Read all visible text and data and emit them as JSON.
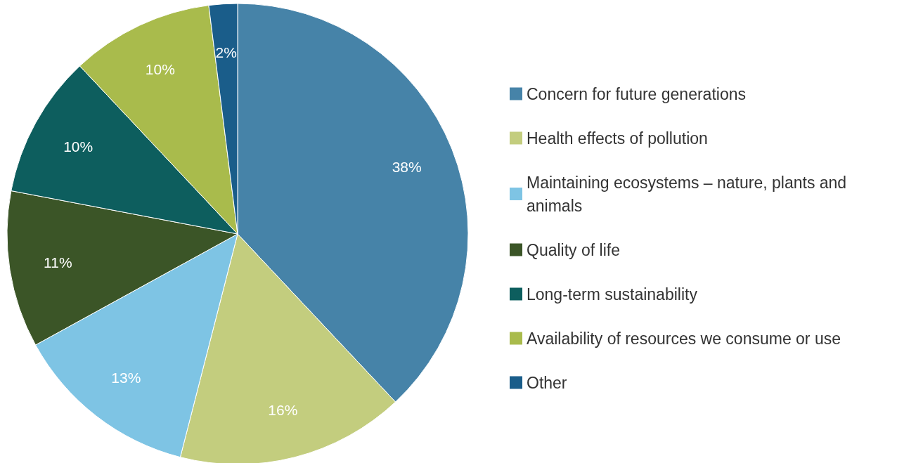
{
  "chart_data": {
    "type": "pie",
    "categories": [
      "Concern for future generations",
      "Health effects of pollution",
      "Maintaining ecosystems – nature, plants and animals",
      "Quality of life",
      "Long-term sustainability",
      "Availability of resources we consume or use",
      "Other"
    ],
    "values": [
      38,
      16,
      13,
      11,
      10,
      10,
      2
    ],
    "value_labels": [
      "38%",
      "16%",
      "13%",
      "11%",
      "10%",
      "10%",
      "2%"
    ],
    "colors": [
      "#4683a8",
      "#c3cd7e",
      "#7ec4e4",
      "#3b5527",
      "#0d5e5e",
      "#a9bb4c",
      "#1a5d8a"
    ],
    "legend": "right"
  }
}
